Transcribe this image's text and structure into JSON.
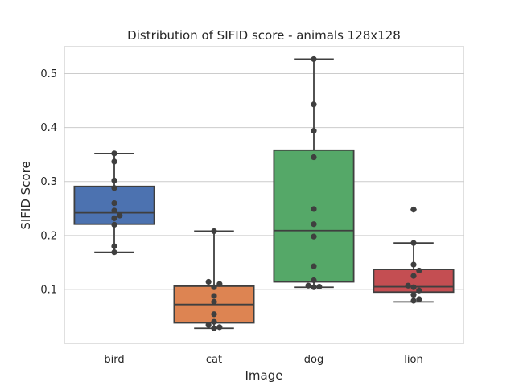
{
  "chart_data": {
    "type": "box",
    "title": "Distribution of SIFID score - animals 128x128",
    "xlabel": "Image",
    "ylabel": "SIFID Score",
    "ylim": [
      0.0,
      0.55
    ],
    "yticks": [
      0.1,
      0.2,
      0.3,
      0.4,
      0.5
    ],
    "ytick_labels": [
      "0.1",
      "0.2",
      "0.3",
      "0.4",
      "0.5"
    ],
    "grid": true,
    "categories": [
      "bird",
      "cat",
      "dog",
      "lion"
    ],
    "colors": [
      "#4c72b0",
      "#dd8452",
      "#55a868",
      "#c44e52"
    ],
    "boxes": [
      {
        "name": "bird",
        "whisker_low": 0.169,
        "q1": 0.221,
        "median": 0.242,
        "q3": 0.291,
        "whisker_high": 0.352,
        "outliers": []
      },
      {
        "name": "cat",
        "whisker_low": 0.028,
        "q1": 0.038,
        "median": 0.072,
        "q3": 0.106,
        "whisker_high": 0.208,
        "outliers": []
      },
      {
        "name": "dog",
        "whisker_low": 0.104,
        "q1": 0.114,
        "median": 0.209,
        "q3": 0.358,
        "whisker_high": 0.527,
        "outliers": []
      },
      {
        "name": "lion",
        "whisker_low": 0.077,
        "q1": 0.095,
        "median": 0.105,
        "q3": 0.137,
        "whisker_high": 0.186,
        "outliers": [
          0.248
        ]
      }
    ],
    "points": [
      {
        "category": "bird",
        "values": [
          0.352,
          0.337,
          0.302,
          0.288,
          0.26,
          0.246,
          0.237,
          0.232,
          0.22,
          0.18,
          0.169
        ]
      },
      {
        "category": "cat",
        "values": [
          0.208,
          0.114,
          0.11,
          0.104,
          0.088,
          0.077,
          0.054,
          0.04,
          0.034,
          0.03,
          0.028
        ]
      },
      {
        "category": "dog",
        "values": [
          0.527,
          0.443,
          0.394,
          0.345,
          0.249,
          0.221,
          0.198,
          0.143,
          0.117,
          0.107,
          0.105,
          0.104
        ]
      },
      {
        "category": "lion",
        "values": [
          0.248,
          0.186,
          0.146,
          0.135,
          0.125,
          0.107,
          0.104,
          0.098,
          0.09,
          0.082,
          0.079
        ]
      }
    ]
  }
}
